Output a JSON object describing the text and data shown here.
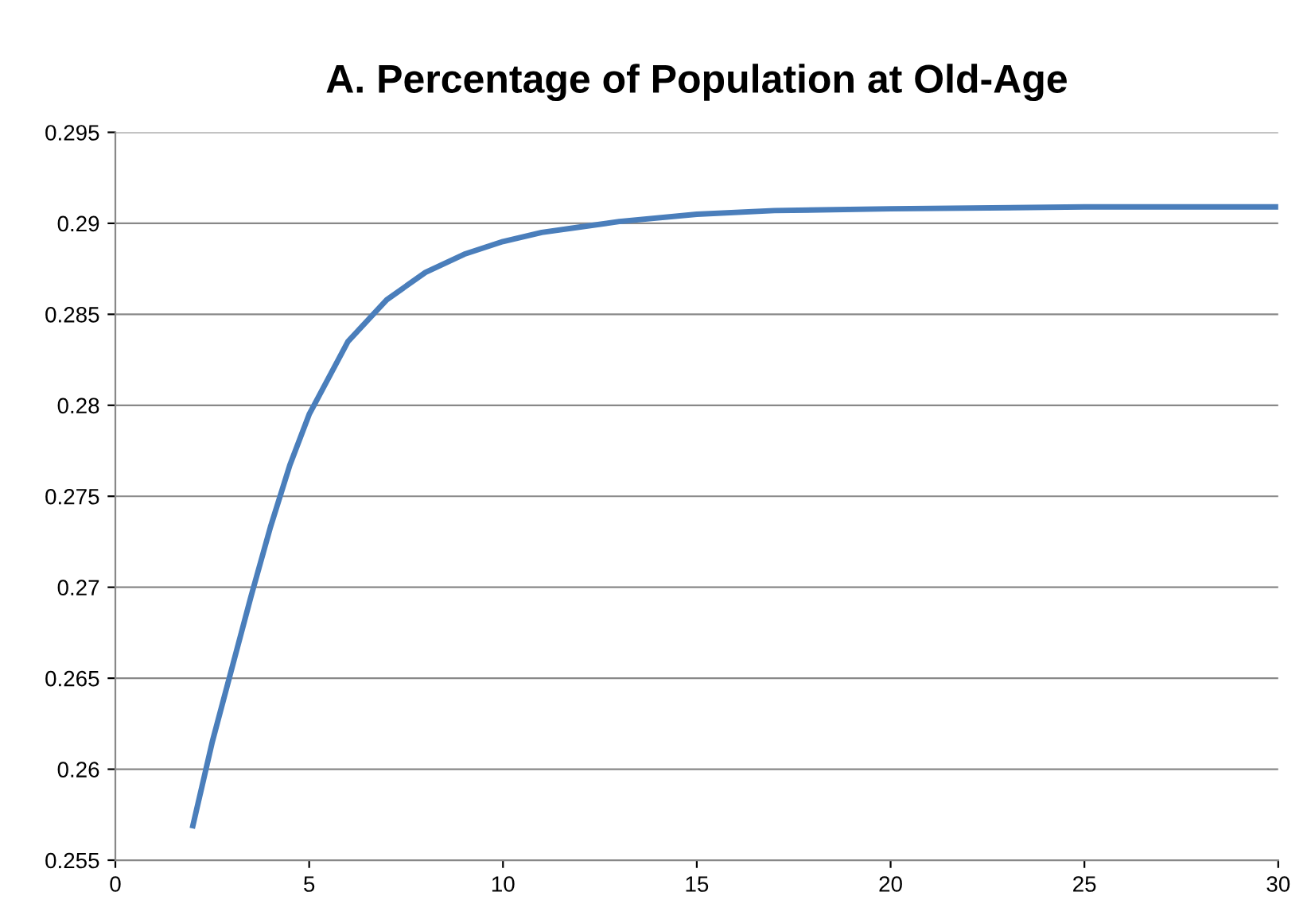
{
  "chart_data": {
    "type": "line",
    "title": "A. Percentage of Population at Old-Age",
    "series": [
      {
        "color": "#4a7ebb",
        "x": [
          2,
          2.5,
          3,
          3.5,
          4,
          4.5,
          5,
          6,
          7,
          8,
          9,
          10,
          11,
          12,
          13,
          15,
          17,
          20,
          25,
          30
        ],
        "values": [
          0.2569,
          0.2615,
          0.2655,
          0.2695,
          0.2733,
          0.2767,
          0.2795,
          0.2835,
          0.2858,
          0.2873,
          0.2883,
          0.289,
          0.2895,
          0.2898,
          0.2901,
          0.2905,
          0.2907,
          0.2908,
          0.2909,
          0.2909
        ]
      }
    ],
    "xlim": [
      0,
      30
    ],
    "xticks": [
      0,
      5,
      10,
      15,
      20,
      25,
      30
    ],
    "ylim": [
      0.255,
      0.295
    ],
    "yticks": [
      0.255,
      0.26,
      0.265,
      0.27,
      0.275,
      0.28,
      0.285,
      0.29,
      0.295
    ],
    "grid": "y",
    "legend": false,
    "marker": "none",
    "line_style": "solid"
  }
}
